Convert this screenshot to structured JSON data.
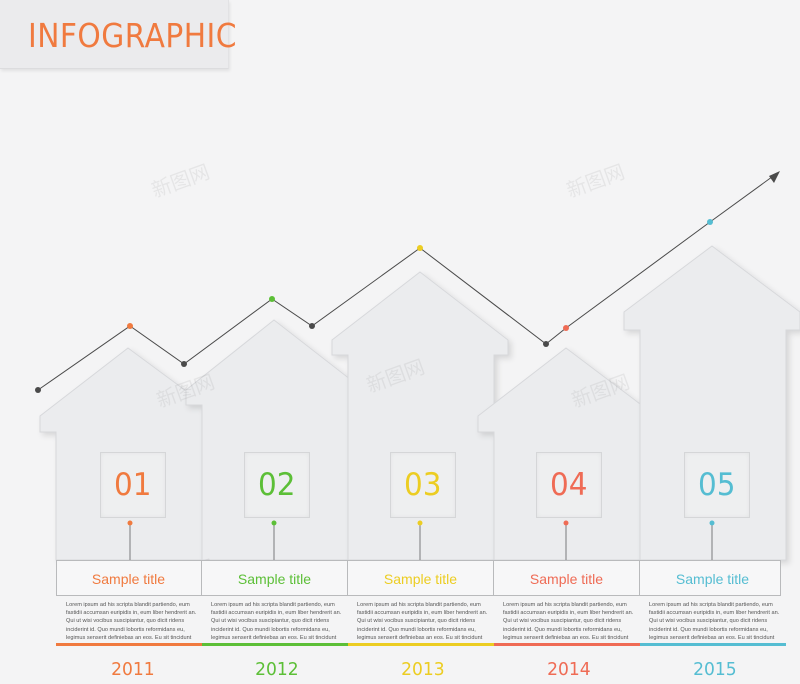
{
  "header": {
    "title": "INFOGRAPHIC"
  },
  "watermark": "新图网",
  "steps": [
    {
      "number": "01",
      "title": "Sample title",
      "year": "2011",
      "color": "#f07a3f",
      "text": "Lorem ipsum ad his scripta blandit partiendo, eum fastidii accumsan euripidis in, eum liber hendrerit an. Qui ut wisi vocibus suscipiantur, quo dicit ridens inciderint id. Quo mundi lobortis reformidans eu, legimus senserit definiebas an eos. Eu sit tincidunt incorrupte definitionem, vis"
    },
    {
      "number": "02",
      "title": "Sample title",
      "year": "2012",
      "color": "#5cbf37",
      "text": "Lorem ipsum ad his scripta blandit partiendo, eum fastidii accumsan euripidis in, eum liber hendrerit an. Qui ut wisi vocibus suscipiantur, quo dicit ridens inciderint id. Quo mundi lobortis reformidans eu, legimus senserit definiebas an eos. Eu sit tincidunt incorrupte definitionem, vis"
    },
    {
      "number": "03",
      "title": "Sample title",
      "year": "2013",
      "color": "#eccd22",
      "text": "Lorem ipsum ad his scripta blandit partiendo, eum fastidii accumsan euripidis in, eum liber hendrerit an. Qui ut wisi vocibus suscipiantur, quo dicit ridens inciderint id. Quo mundi lobortis reformidans eu, legimus senserit definiebas an eos. Eu sit tincidunt incorrupte definitionem, vis"
    },
    {
      "number": "04",
      "title": "Sample title",
      "year": "2014",
      "color": "#ef6b55",
      "text": "Lorem ipsum ad his scripta blandit partiendo, eum fastidii accumsan euripidis in, eum liber hendrerit an. Qui ut wisi vocibus suscipiantur, quo dicit ridens inciderint id. Quo mundi lobortis reformidans eu, legimus senserit definiebas an eos. Eu sit tincidunt incorrupte definitionem, vis"
    },
    {
      "number": "05",
      "title": "Sample title",
      "year": "2015",
      "color": "#55bdd2",
      "text": "Lorem ipsum ad his scripta blandit partiendo, eum fastidii accumsan euripidis in, eum liber hendrerit an. Qui ut wisi vocibus suscipiantur, quo dicit ridens inciderint id. Quo mundi lobortis reformidans eu, legimus senserit definiebas an eos. Eu sit tincidunt incorrupte definitionem, vis"
    }
  ],
  "colors": {
    "line": "#4a4a4a",
    "house": "#e9eaec",
    "house_edge": "#d4d5d8",
    "background": "#f4f4f5"
  }
}
